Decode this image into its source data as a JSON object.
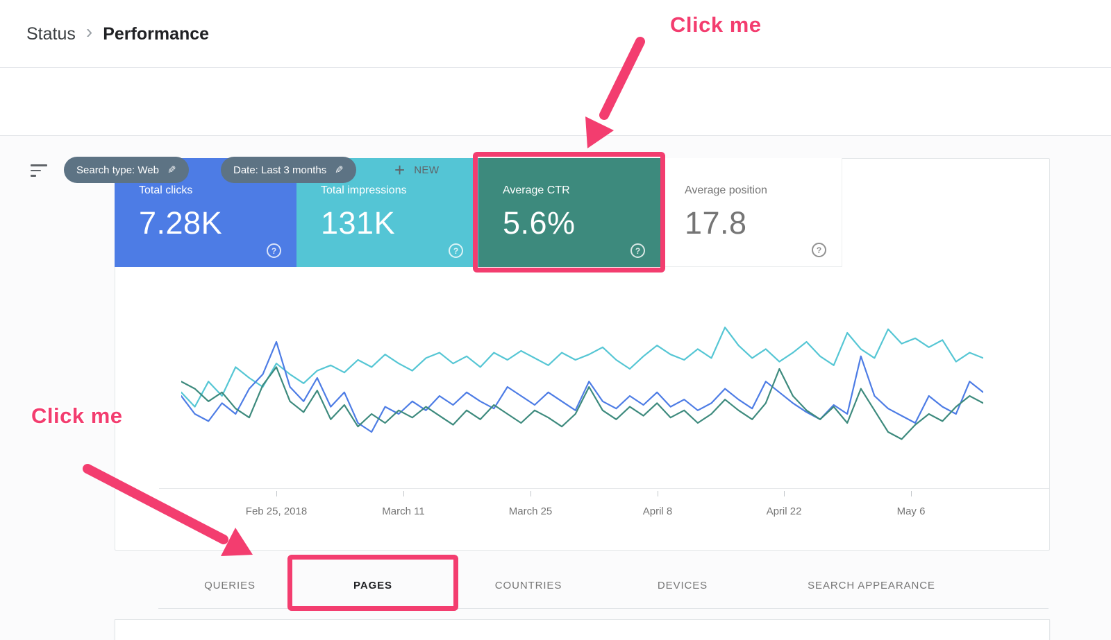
{
  "breadcrumb": {
    "status": "Status",
    "separator": "›",
    "current": "Performance"
  },
  "filter_bar": {
    "chips": [
      {
        "label": "Search type: Web"
      },
      {
        "label": "Date: Last 3 months"
      }
    ],
    "new_button_label": "NEW",
    "chip_bg": "#5d7384"
  },
  "icons": {
    "pencil": "✎",
    "plus": "+",
    "help": "?",
    "filter": "filter-list",
    "chevron": "›"
  },
  "metrics": {
    "cards": [
      {
        "label": "Total clicks",
        "value": "7.28K",
        "bg": "#4d7ce5",
        "text": "#ffffff"
      },
      {
        "label": "Total impressions",
        "value": "131K",
        "bg": "#54c5d5",
        "text": "#ffffff"
      },
      {
        "label": "Average CTR",
        "value": "5.6%",
        "bg": "#3d8a7d",
        "text": "#ffffff"
      },
      {
        "label": "Average position",
        "value": "17.8",
        "bg": "#ffffff",
        "text": "#757575"
      }
    ]
  },
  "tabs": [
    {
      "label": "QUERIES",
      "active": false
    },
    {
      "label": "PAGES",
      "active": true
    },
    {
      "label": "COUNTRIES",
      "active": false
    },
    {
      "label": "DEVICES",
      "active": false
    },
    {
      "label": "SEARCH APPEARANCE",
      "active": false
    }
  ],
  "annotations": {
    "highlight_color": "#f33d6f",
    "top_note": "Click me",
    "left_note": "Click me"
  },
  "chart_data": {
    "type": "line",
    "title": "",
    "xlabel": "",
    "ylabel": "",
    "legend": "none",
    "grid": false,
    "x_tick_labels": [
      "Feb 25, 2018",
      "March 11",
      "March 25",
      "April 8",
      "April 22",
      "May 6"
    ],
    "tick_positions": [
      0.119,
      0.277,
      0.435,
      0.594,
      0.752,
      0.91
    ],
    "ylim": [
      0,
      100
    ],
    "note": "Daily values estimated from pixels; chart has no visible y-axis labels",
    "series": [
      {
        "name": "Total impressions",
        "color": "#55c6d4",
        "values": [
          52,
          44,
          58,
          50,
          66,
          60,
          55,
          68,
          62,
          57,
          64,
          67,
          63,
          70,
          66,
          73,
          68,
          64,
          71,
          74,
          68,
          72,
          66,
          74,
          70,
          75,
          71,
          67,
          74,
          70,
          73,
          77,
          70,
          65,
          72,
          78,
          73,
          70,
          76,
          71,
          88,
          78,
          71,
          76,
          69,
          74,
          80,
          72,
          67,
          85,
          76,
          71,
          87,
          79,
          82,
          77,
          81,
          69,
          74,
          71
        ]
      },
      {
        "name": "Total clicks",
        "color": "#4d7ce5",
        "values": [
          50,
          40,
          36,
          46,
          40,
          54,
          62,
          80,
          55,
          47,
          60,
          44,
          52,
          35,
          30,
          44,
          40,
          47,
          42,
          50,
          45,
          52,
          47,
          43,
          55,
          50,
          45,
          52,
          47,
          42,
          58,
          47,
          43,
          50,
          45,
          52,
          44,
          48,
          42,
          46,
          54,
          48,
          43,
          58,
          52,
          46,
          41,
          37,
          45,
          40,
          72,
          50,
          43,
          39,
          35,
          50,
          44,
          40,
          58,
          52
        ]
      },
      {
        "name": "Average CTR",
        "color": "#3d8a7d",
        "values": [
          58,
          54,
          47,
          52,
          43,
          38,
          56,
          66,
          47,
          41,
          53,
          37,
          45,
          33,
          40,
          35,
          42,
          38,
          44,
          39,
          34,
          42,
          37,
          45,
          40,
          35,
          42,
          38,
          33,
          40,
          55,
          42,
          37,
          44,
          39,
          46,
          38,
          42,
          35,
          40,
          48,
          42,
          37,
          46,
          65,
          50,
          42,
          37,
          44,
          35,
          54,
          42,
          30,
          26,
          34,
          40,
          36,
          44,
          50,
          46
        ]
      }
    ]
  }
}
